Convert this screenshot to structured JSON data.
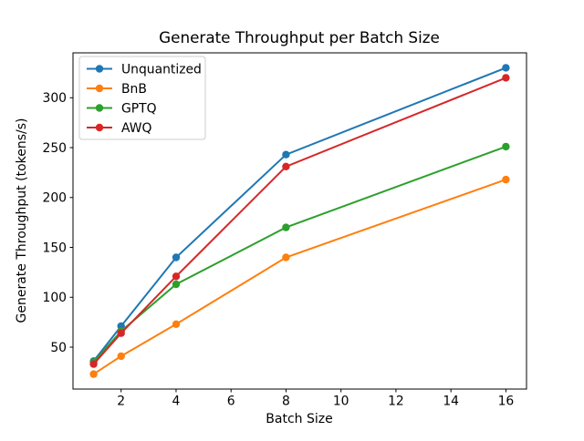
{
  "figure": {
    "background": "#ffffff",
    "frame_color": "#000000",
    "legend_edge_color": "#cccccc"
  },
  "chart_data": {
    "type": "line",
    "title": "Generate Throughput per Batch Size",
    "xlabel": "Batch Size",
    "ylabel": "Generate Throughput (tokens/s)",
    "grid": false,
    "legend_position": "upper-left",
    "x": [
      1,
      2,
      4,
      8,
      16
    ],
    "x_ticks": [
      2,
      4,
      6,
      8,
      10,
      12,
      14,
      16
    ],
    "y_ticks": [
      50,
      100,
      150,
      200,
      250,
      300
    ],
    "xlim": [
      0.25,
      16.75
    ],
    "ylim": [
      8,
      345
    ],
    "series": [
      {
        "name": "Unquantized",
        "color": "#1f77b4",
        "marker": "o",
        "values": [
          36,
          71,
          140,
          243,
          330
        ]
      },
      {
        "name": "BnB",
        "color": "#ff7f0e",
        "marker": "o",
        "values": [
          23,
          41,
          73,
          140,
          218
        ]
      },
      {
        "name": "GPTQ",
        "color": "#2ca02c",
        "marker": "o",
        "values": [
          35,
          66,
          113,
          170,
          251
        ]
      },
      {
        "name": "AWQ",
        "color": "#d62728",
        "marker": "o",
        "values": [
          33,
          64,
          121,
          231,
          320
        ]
      }
    ]
  }
}
